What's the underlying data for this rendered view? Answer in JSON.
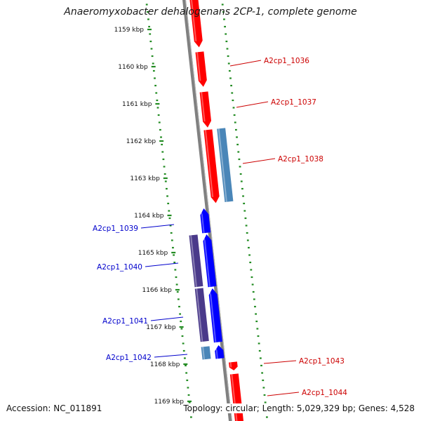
{
  "title": "Anaeromyxobacter dehalogenans 2CP-1, complete genome",
  "footer": {
    "accession": "Accession: NC_011891",
    "summary": "Topology: circular; Length: 5,029,329 bp; Genes: 4,528"
  },
  "colors": {
    "forward_cds": "#ff0000",
    "reverse_cds": "#0000ff",
    "forward_rna": "#4a86b8",
    "reverse_rna": "#4a3a8a",
    "backbone": "#808080",
    "gc_ticks": "#228b22",
    "forward_label": "#cc0000",
    "reverse_label": "#0000cc"
  },
  "kbp_ticks": [
    "1159 kbp",
    "1160 kbp",
    "1161 kbp",
    "1162 kbp",
    "1163 kbp",
    "1164 kbp",
    "1165 kbp",
    "1166 kbp",
    "1167 kbp",
    "1168 kbp",
    "1169 kbp"
  ],
  "gene_labels": [
    {
      "text": "A2cp1_1036",
      "strand": "forward"
    },
    {
      "text": "A2cp1_1037",
      "strand": "forward"
    },
    {
      "text": "A2cp1_1038",
      "strand": "forward"
    },
    {
      "text": "A2cp1_1039",
      "strand": "reverse"
    },
    {
      "text": "A2cp1_1040",
      "strand": "reverse"
    },
    {
      "text": "A2cp1_1041",
      "strand": "reverse"
    },
    {
      "text": "A2cp1_1042",
      "strand": "reverse"
    },
    {
      "text": "A2cp1_1043",
      "strand": "forward"
    },
    {
      "text": "A2cp1_1044",
      "strand": "forward"
    }
  ]
}
